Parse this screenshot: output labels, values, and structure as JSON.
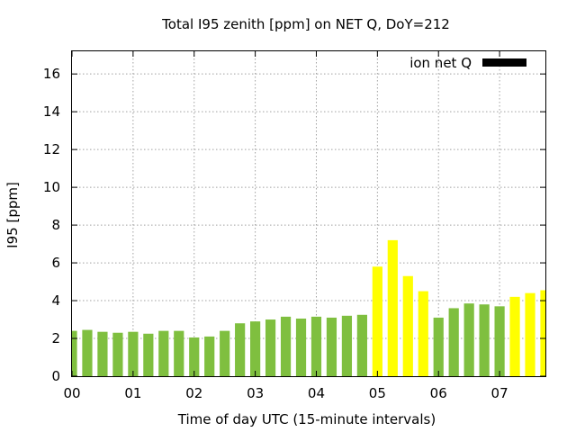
{
  "chart_data": {
    "type": "bar",
    "title": "Total I95 zenith [ppm] on NET Q, DoY=212",
    "xlabel": "Time of day UTC (15-minute intervals)",
    "ylabel": "I95 [ppm]",
    "ylim": [
      0,
      17.2
    ],
    "xlim": [
      0,
      7.75
    ],
    "yticks": [
      0,
      2,
      4,
      6,
      8,
      10,
      12,
      14,
      16
    ],
    "xticks": [
      {
        "value": 0,
        "label": "00"
      },
      {
        "value": 1,
        "label": "01"
      },
      {
        "value": 2,
        "label": "02"
      },
      {
        "value": 3,
        "label": "03"
      },
      {
        "value": 4,
        "label": "04"
      },
      {
        "value": 5,
        "label": "05"
      },
      {
        "value": 6,
        "label": "06"
      },
      {
        "value": 7,
        "label": "07"
      }
    ],
    "grid": true,
    "legend": {
      "position": "top-right",
      "label": "ion net Q",
      "color": "#000000"
    },
    "colors": {
      "normal": "#7fbf3f",
      "elevated": "#ffff00"
    },
    "series": [
      {
        "x": [
          0.0,
          0.25,
          0.5,
          0.75,
          1.0,
          1.25,
          1.5,
          1.75,
          2.0,
          2.25,
          2.5,
          2.75,
          3.0,
          3.25,
          3.5,
          3.75,
          4.0,
          4.25,
          4.5,
          4.75,
          5.0,
          5.25,
          5.5,
          5.75,
          6.0,
          6.25,
          6.5,
          6.75,
          7.0,
          7.25,
          7.5,
          7.75
        ],
        "values": [
          2.4,
          2.45,
          2.35,
          2.3,
          2.35,
          2.25,
          2.4,
          2.4,
          2.05,
          2.1,
          2.4,
          2.8,
          2.9,
          3.0,
          3.15,
          3.05,
          3.15,
          3.1,
          3.2,
          3.25,
          5.8,
          7.2,
          5.3,
          4.5,
          3.1,
          3.6,
          3.85,
          3.8,
          3.7,
          4.2,
          4.4,
          4.55
        ],
        "bar_colors": [
          "#7fbf3f",
          "#7fbf3f",
          "#7fbf3f",
          "#7fbf3f",
          "#7fbf3f",
          "#7fbf3f",
          "#7fbf3f",
          "#7fbf3f",
          "#7fbf3f",
          "#7fbf3f",
          "#7fbf3f",
          "#7fbf3f",
          "#7fbf3f",
          "#7fbf3f",
          "#7fbf3f",
          "#7fbf3f",
          "#7fbf3f",
          "#7fbf3f",
          "#7fbf3f",
          "#7fbf3f",
          "#ffff00",
          "#ffff00",
          "#ffff00",
          "#ffff00",
          "#7fbf3f",
          "#7fbf3f",
          "#7fbf3f",
          "#7fbf3f",
          "#7fbf3f",
          "#ffff00",
          "#ffff00",
          "#ffff00"
        ]
      }
    ]
  }
}
